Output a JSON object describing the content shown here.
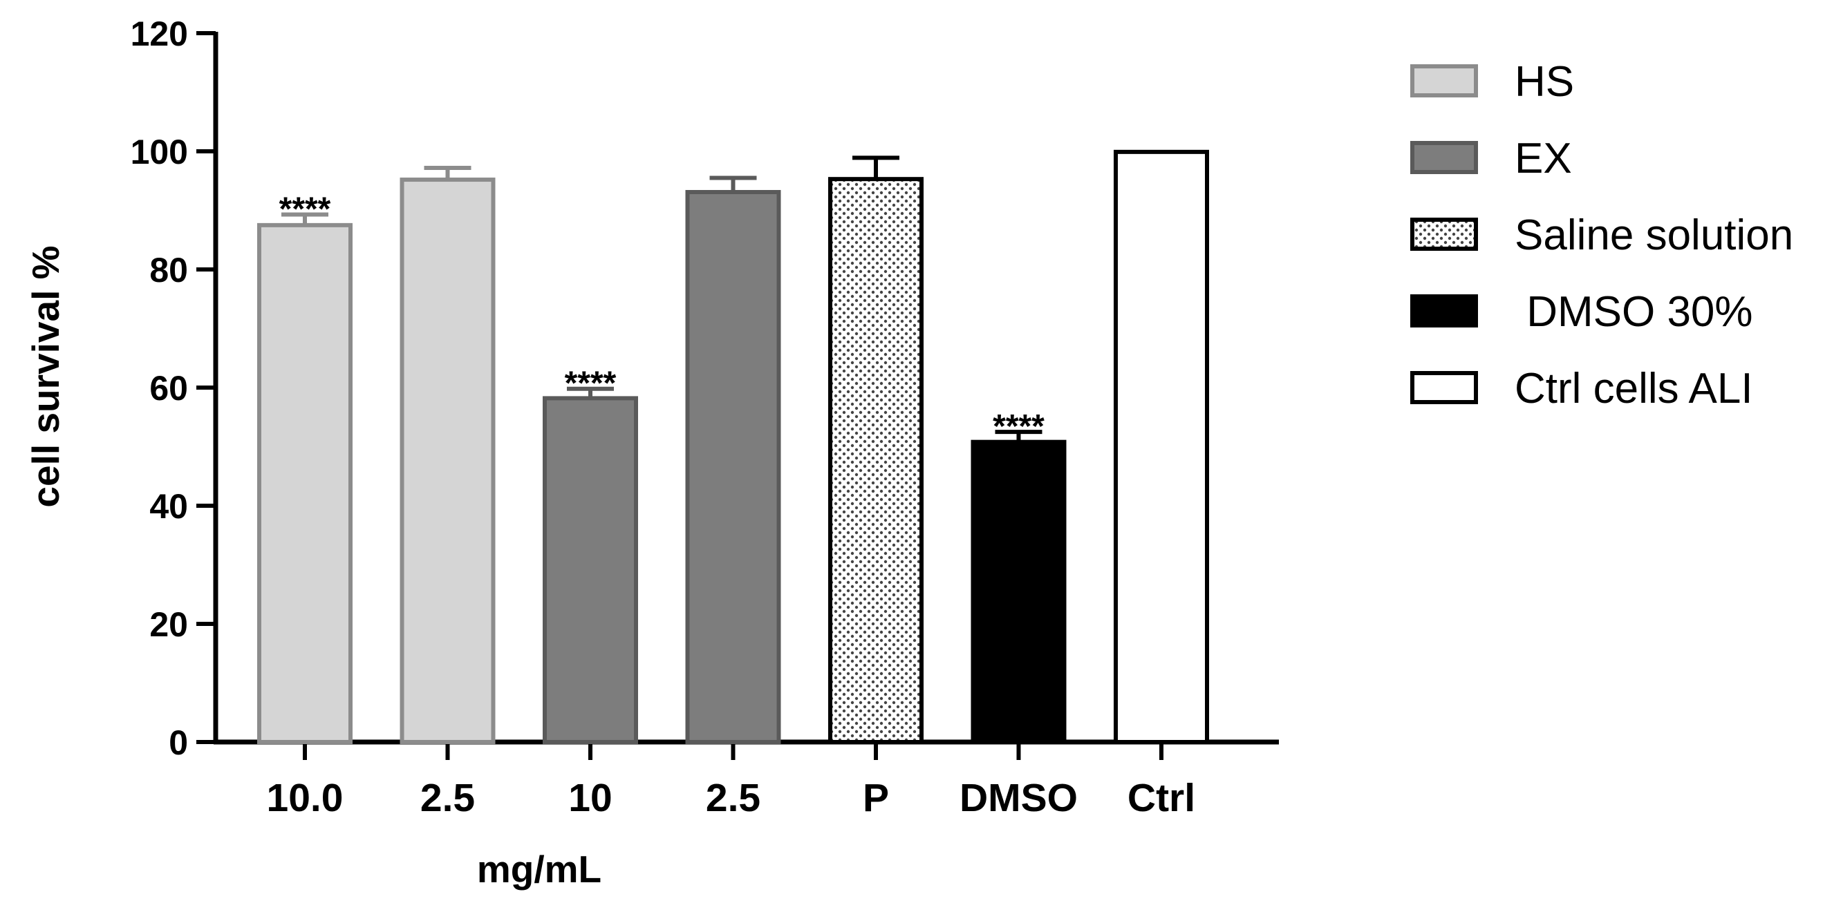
{
  "chart_data": {
    "type": "bar",
    "title": "",
    "ylabel": "cell survival %",
    "xlabel": "mg/mL",
    "ylim": [
      0,
      120
    ],
    "yticks": [
      0,
      20,
      40,
      60,
      80,
      100,
      120
    ],
    "ytick_labels": [
      "0",
      "20",
      "40",
      "60",
      "80",
      "100",
      "120"
    ],
    "categories": [
      "10.0",
      "2.5",
      "10",
      "2.5",
      "P",
      "DMSO",
      "Ctrl"
    ],
    "values": [
      87.5,
      95.2,
      58.2,
      93.1,
      95.3,
      50.8,
      99.9
    ],
    "errors": [
      1.8,
      2.0,
      1.6,
      2.4,
      3.6,
      1.7,
      0
    ],
    "groups": [
      "HS",
      "HS",
      "EX",
      "EX",
      "Saline solution",
      "DMSO 30%",
      "Ctrl cells ALI"
    ],
    "significance": [
      "****",
      "",
      "****",
      "",
      "",
      "****",
      ""
    ],
    "legend": [
      {
        "label": "HS",
        "fill": "#d5d5d5",
        "stroke": "#8c8c8c",
        "pattern": "solid"
      },
      {
        "label": "EX",
        "fill": "#7d7d7d",
        "stroke": "#5a5a5a",
        "pattern": "solid"
      },
      {
        "label": "Saline solution",
        "fill": "#ffffff",
        "stroke": "#000000",
        "pattern": "dots"
      },
      {
        "label": " DMSO 30%",
        "fill": "#000000",
        "stroke": "#000000",
        "pattern": "solid"
      },
      {
        "label": "Ctrl cells ALI",
        "fill": "#ffffff",
        "stroke": "#000000",
        "pattern": "solid"
      }
    ]
  }
}
